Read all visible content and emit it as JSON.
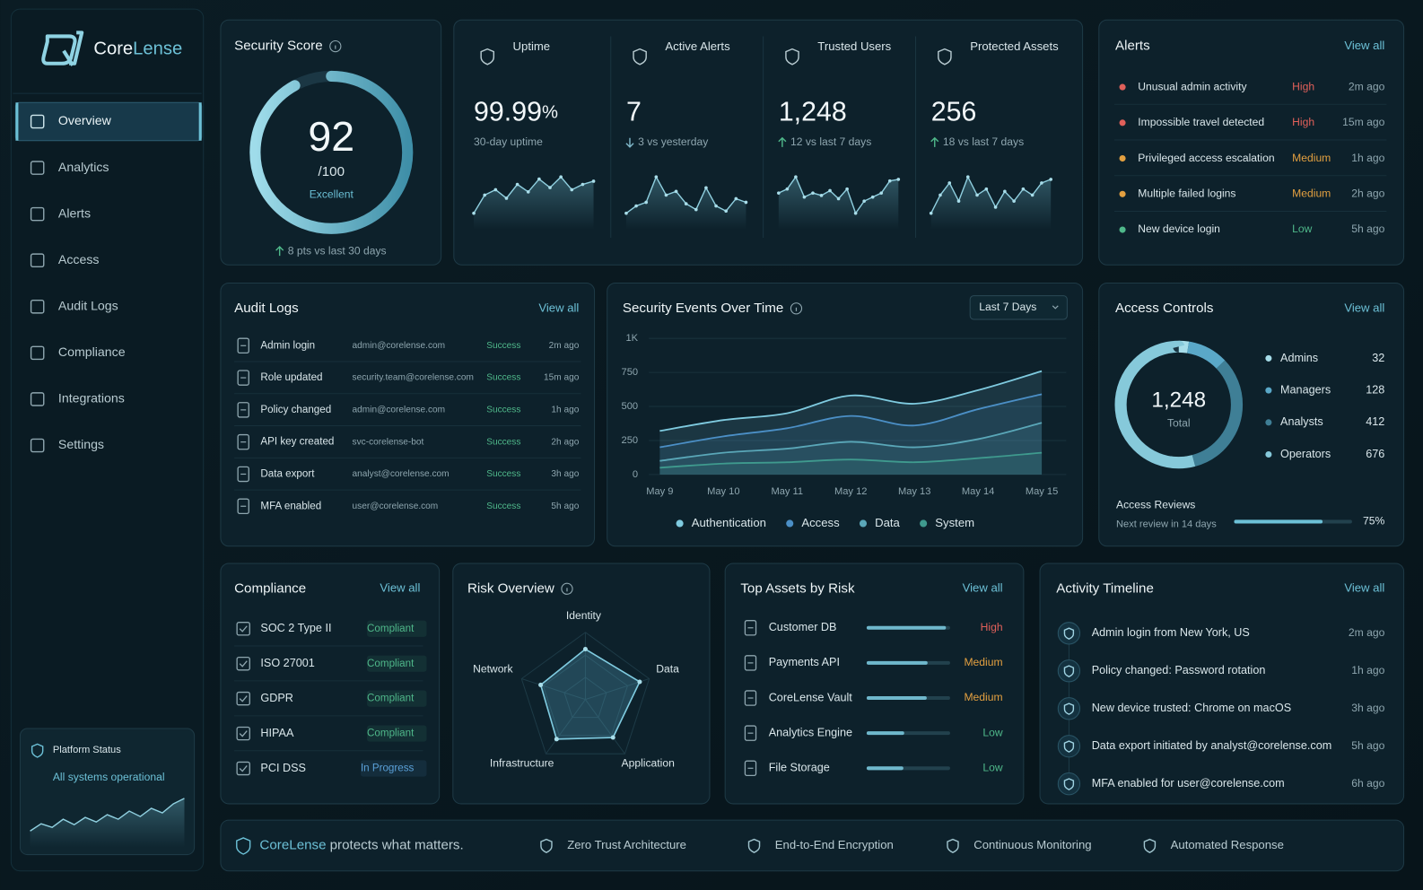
{
  "brand": {
    "name_a": "Core",
    "name_b": "Lense"
  },
  "nav": {
    "items": [
      "Overview",
      "Analytics",
      "Alerts",
      "Access",
      "Audit Logs",
      "Compliance",
      "Integrations",
      "Settings"
    ],
    "active": "Overview"
  },
  "platform_status": {
    "title": "Platform Status",
    "status": "All systems operational",
    "trend": [
      20,
      28,
      24,
      33,
      27,
      35,
      30,
      38,
      33,
      42,
      36,
      45,
      40,
      50,
      56
    ]
  },
  "security_score": {
    "title": "Security Score",
    "score": 92,
    "max": {
      "value": 100,
      "label": "/100"
    },
    "rating": "Excellent",
    "change": "8 pts vs last 30 days"
  },
  "kpis": [
    {
      "label": "Uptime",
      "value": "99.99",
      "unit": "%",
      "sub": "30-day uptime",
      "trend": [
        18,
        35,
        40,
        32,
        45,
        38,
        50,
        42,
        52,
        40,
        45,
        48
      ]
    },
    {
      "label": "Active Alerts",
      "value": "7",
      "sub": "3 vs yesterday",
      "direction": "down",
      "trend": [
        25,
        35,
        40,
        75,
        50,
        55,
        38,
        30,
        60,
        35,
        28,
        45,
        40
      ]
    },
    {
      "label": "Trusted Users",
      "value": "1,248",
      "sub": "12 vs last 7 days",
      "direction": "up",
      "trend": [
        45,
        50,
        65,
        40,
        45,
        42,
        48,
        38,
        50,
        20,
        35,
        40,
        45,
        60,
        62
      ]
    },
    {
      "label": "Protected Assets",
      "value": "256",
      "sub": "18 vs last 7 days",
      "direction": "up",
      "trend": [
        30,
        45,
        55,
        40,
        60,
        45,
        50,
        35,
        48,
        40,
        50,
        45,
        55,
        58
      ]
    }
  ],
  "alerts": {
    "title": "Alerts",
    "view_all": "View all",
    "items": [
      {
        "name": "Unusual admin activity",
        "severity": "High",
        "time": "2m ago",
        "color": "#e0605a"
      },
      {
        "name": "Impossible travel detected",
        "severity": "High",
        "time": "15m ago",
        "color": "#e0605a"
      },
      {
        "name": "Privileged access escalation",
        "severity": "Medium",
        "time": "1h ago",
        "color": "#e3a040"
      },
      {
        "name": "Multiple failed logins",
        "severity": "Medium",
        "time": "2h ago",
        "color": "#e3a040"
      },
      {
        "name": "New device login",
        "severity": "Low",
        "time": "5h ago",
        "color": "#4fb88a"
      }
    ]
  },
  "audit_logs": {
    "title": "Audit Logs",
    "view_all": "View all",
    "rows": [
      {
        "action": "Admin login",
        "user": "admin@corelense.com",
        "status": "Success",
        "time": "2m ago"
      },
      {
        "action": "Role updated",
        "user": "security.team@corelense.com",
        "status": "Success",
        "time": "15m ago"
      },
      {
        "action": "Policy changed",
        "user": "admin@corelense.com",
        "status": "Success",
        "time": "1h ago"
      },
      {
        "action": "API key created",
        "user": "svc-corelense-bot",
        "status": "Success",
        "time": "2h ago"
      },
      {
        "action": "Data export",
        "user": "analyst@corelense.com",
        "status": "Success",
        "time": "3h ago"
      },
      {
        "action": "MFA enabled",
        "user": "user@corelense.com",
        "status": "Success",
        "time": "5h ago"
      }
    ]
  },
  "chart_data": {
    "type": "line",
    "title": "Security Events Over Time",
    "range_selector": "Last 7 Days",
    "categories": [
      "May 9",
      "May 10",
      "May 11",
      "May 12",
      "May 13",
      "May 14",
      "May 15"
    ],
    "ylim": [
      0,
      1000
    ],
    "yticks": [
      0,
      250,
      500,
      750,
      {
        "value": 1000,
        "label": "1K"
      }
    ],
    "grid": true,
    "series": [
      {
        "name": "Authentication",
        "color": "#7fcbe0",
        "values": [
          320,
          400,
          450,
          580,
          520,
          620,
          760
        ]
      },
      {
        "name": "Access",
        "color": "#4b8fc6",
        "values": [
          200,
          280,
          340,
          430,
          360,
          480,
          590
        ]
      },
      {
        "name": "Data",
        "color": "#5aa7b8",
        "values": [
          100,
          160,
          190,
          240,
          200,
          260,
          380
        ]
      },
      {
        "name": "System",
        "color": "#3f9a8e",
        "values": [
          50,
          80,
          90,
          110,
          90,
          120,
          160
        ]
      }
    ]
  },
  "access_controls": {
    "title": "Access Controls",
    "view_all": "View all",
    "total": "1,248",
    "total_label": "Total",
    "roles": [
      {
        "name": "Admins",
        "count": 32,
        "color": "#a6dde9"
      },
      {
        "name": "Managers",
        "count": 128,
        "color": "#5aa8c8"
      },
      {
        "name": "Analysts",
        "count": 412,
        "color": "#3f7f96"
      },
      {
        "name": "Operators",
        "count": 676,
        "color": "#86c9da"
      }
    ],
    "reviews": {
      "title": "Access Reviews",
      "next": "Next review in 14 days",
      "percent": 75,
      "percent_label": "75%"
    }
  },
  "compliance": {
    "title": "Compliance",
    "view_all": "View all",
    "items": [
      {
        "name": "SOC 2 Type II",
        "status": "Compliant",
        "color": "#4fb88a"
      },
      {
        "name": "ISO 27001",
        "status": "Compliant",
        "color": "#4fb88a"
      },
      {
        "name": "GDPR",
        "status": "Compliant",
        "color": "#4fb88a"
      },
      {
        "name": "HIPAA",
        "status": "Compliant",
        "color": "#4fb88a"
      },
      {
        "name": "PCI DSS",
        "status": "In Progress",
        "color": "#5aa0d8"
      }
    ]
  },
  "risk_overview": {
    "title": "Risk Overview",
    "axes": [
      "Identity",
      "Data",
      "Application",
      "Infrastructure",
      "Network"
    ],
    "values": [
      75,
      85,
      70,
      73,
      70
    ],
    "max": 100
  },
  "top_assets": {
    "title": "Top Assets by Risk",
    "view_all": "View all",
    "items": [
      {
        "name": "Customer DB",
        "score": 95,
        "risk": "High",
        "color": "#e0605a"
      },
      {
        "name": "Payments API",
        "score": 73,
        "risk": "Medium",
        "color": "#e3a040"
      },
      {
        "name": "CoreLense Vault",
        "score": 72,
        "risk": "Medium",
        "color": "#e3a040"
      },
      {
        "name": "Analytics Engine",
        "score": 45,
        "risk": "Low",
        "color": "#4fb88a"
      },
      {
        "name": "File Storage",
        "score": 44,
        "risk": "Low",
        "color": "#4fb88a"
      }
    ]
  },
  "activity": {
    "title": "Activity Timeline",
    "view_all": "View all",
    "items": [
      {
        "text": "Admin login from New York, US",
        "time": "2m ago"
      },
      {
        "text": "Policy changed: Password rotation",
        "time": "1h ago"
      },
      {
        "text": "New device trusted: Chrome on macOS",
        "time": "3h ago"
      },
      {
        "text": "Data export initiated by analyst@corelense.com",
        "time": "5h ago"
      },
      {
        "text": "MFA enabled for user@corelense.com",
        "time": "6h ago"
      }
    ]
  },
  "footer": {
    "brand": "CoreLense",
    "tagline": "protects what matters.",
    "features": [
      "Zero Trust Architecture",
      "End-to-End Encryption",
      "Continuous Monitoring",
      "Automated Response"
    ]
  }
}
